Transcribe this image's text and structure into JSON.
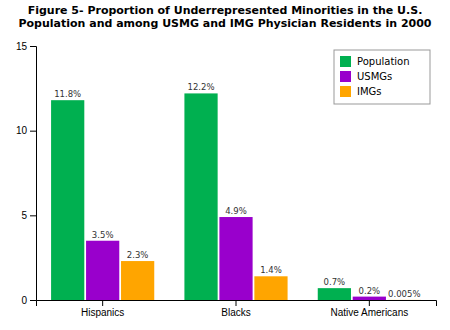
{
  "chart_data": {
    "type": "bar",
    "title": "Figure 5- Proportion of Underrepresented Minorities in the U.S.\nPopulation and among USMG and IMG Physician Residents in 2000",
    "categories": [
      "Hispanics",
      "Blacks",
      "Native Americans"
    ],
    "series": [
      {
        "name": "Population",
        "color": "#00b050",
        "values": [
          11.8,
          12.2,
          0.7
        ],
        "value_labels": [
          "11.8%",
          "12.2%",
          "0.7%"
        ]
      },
      {
        "name": "USMGs",
        "color": "#9900cc",
        "values": [
          3.5,
          4.9,
          0.2
        ],
        "value_labels": [
          "3.5%",
          "4.9%",
          "0.2%"
        ]
      },
      {
        "name": "IMGs",
        "color": "#ffa500",
        "values": [
          2.3,
          1.4,
          0.005
        ],
        "value_labels": [
          "2.3%",
          "1.4%",
          "0.005%"
        ]
      }
    ],
    "ylim": [
      0,
      15
    ],
    "yticks": [
      0,
      5,
      10,
      15
    ],
    "grid": false,
    "legend": "upper right",
    "data_labels": true
  }
}
